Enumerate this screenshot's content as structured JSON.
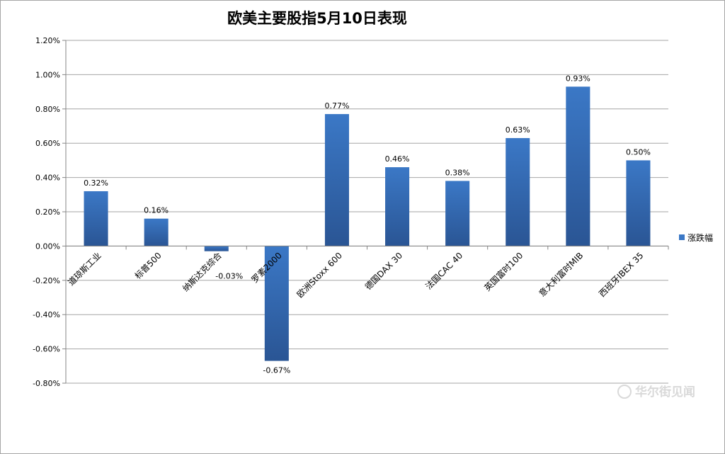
{
  "chart_data": {
    "type": "bar",
    "title": "欧美主要股指5月10日表现",
    "categories": [
      "道琼斯工业",
      "标普500",
      "纳斯达克综合",
      "罗素2000",
      "欧洲Stoxx 600",
      "德国DAX 30",
      "法国CAC 40",
      "英国富时100",
      "意大利富时MIB",
      "西班牙IBEX 35"
    ],
    "series": [
      {
        "name": "涨跌幅",
        "values": [
          0.32,
          0.16,
          -0.03,
          -0.67,
          0.77,
          0.46,
          0.38,
          0.63,
          0.93,
          0.5
        ],
        "labels": [
          "0.32%",
          "0.16%",
          "-0.03%",
          "-0.67%",
          "0.77%",
          "0.46%",
          "0.38%",
          "0.63%",
          "0.93%",
          "0.50%"
        ]
      }
    ],
    "yticks": [
      "1.20%",
      "1.00%",
      "0.80%",
      "0.60%",
      "0.40%",
      "0.20%",
      "0.00%",
      "-0.20%",
      "-0.40%",
      "-0.60%",
      "-0.80%"
    ],
    "ylim": [
      -0.8,
      1.2
    ],
    "ystep": 0.2,
    "grid": true,
    "legend": "right",
    "xlabel": "",
    "ylabel": ""
  },
  "colors": {
    "bar_top": "#3b78c6",
    "bar_bottom": "#2a5594",
    "grid": "#a6a6a6",
    "axis": "#868686"
  },
  "watermark": "华尔街见闻"
}
